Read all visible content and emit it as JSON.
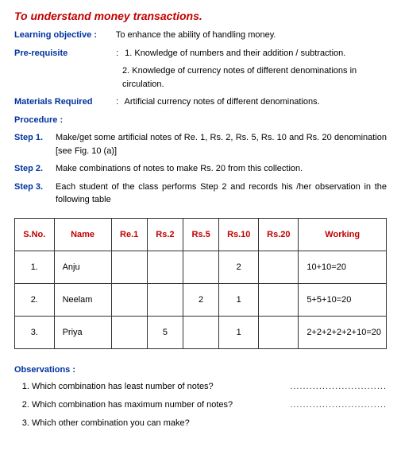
{
  "title": "To understand money transactions.",
  "learningObjective": {
    "label": "Learning objective",
    "text": "To enhance the ability of handling money."
  },
  "preRequisite": {
    "label": "Pre-requisite",
    "items": [
      "1. Knowledge of numbers and their addition / subtraction.",
      "2. Knowledge of currency notes of different denominations in circulation."
    ]
  },
  "materials": {
    "label": "Materials Required",
    "text": "Artificial currency notes of different denominations."
  },
  "procedure": {
    "label": "Procedure :",
    "steps": [
      {
        "label": "Step 1.",
        "text": "Make/get some artificial notes of Re. 1, Rs. 2, Rs. 5, Rs. 10 and Rs. 20 denomination [see Fig. 10 (a)]"
      },
      {
        "label": "Step 2.",
        "text": "Make combinations of notes to make Rs. 20 from this collection."
      },
      {
        "label": "Step 3.",
        "text": "Each student of the class performs Step 2 and records his /her observation in the following table"
      }
    ]
  },
  "table": {
    "headers": [
      "S.No.",
      "Name",
      "Re.1",
      "Rs.2",
      "Rs.5",
      "Rs.10",
      "Rs.20",
      "Working"
    ],
    "rows": [
      {
        "sno": "1.",
        "name": "Anju",
        "re1": "",
        "rs2": "",
        "rs5": "",
        "rs10": "2",
        "rs20": "",
        "working": "10+10=20"
      },
      {
        "sno": "2.",
        "name": "Neelam",
        "re1": "",
        "rs2": "",
        "rs5": "2",
        "rs10": "1",
        "rs20": "",
        "working": "5+5+10=20"
      },
      {
        "sno": "3.",
        "name": "Priya",
        "re1": "",
        "rs2": "5",
        "rs5": "",
        "rs10": "1",
        "rs20": "",
        "working": "2+2+2+2+2+10=20"
      }
    ]
  },
  "observations": {
    "label": "Observations :",
    "items": [
      {
        "q": "Which combination has least number of notes?",
        "blank": true
      },
      {
        "q": "Which combination has maximum number of notes?",
        "blank": true
      },
      {
        "q": "Which other combination you can make?",
        "blank": false
      }
    ]
  },
  "colors": {
    "red": "#c00000",
    "blue": "#0033a0"
  }
}
